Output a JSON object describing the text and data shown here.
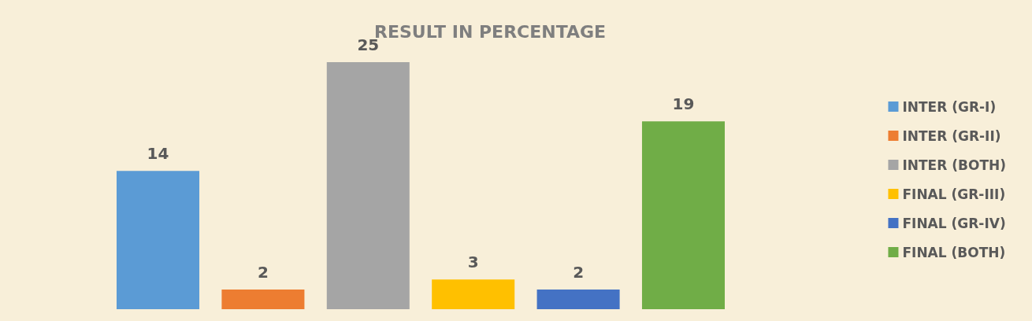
{
  "chart_data": {
    "type": "bar",
    "title": "RESULT IN PERCENTAGE",
    "categories": [
      null
    ],
    "series": [
      {
        "name": "INTER (GR-I)",
        "color": "#5b9bd5",
        "values": [
          14
        ]
      },
      {
        "name": "INTER (GR-II)",
        "color": "#ed7d31",
        "values": [
          2
        ]
      },
      {
        "name": "INTER (BOTH)",
        "color": "#a5a5a5",
        "values": [
          25
        ]
      },
      {
        "name": "FINAL (GR-III)",
        "color": "#ffc000",
        "values": [
          3
        ]
      },
      {
        "name": "FINAL (GR-IV)",
        "color": "#4472c4",
        "values": [
          2
        ]
      },
      {
        "name": "FINAL (BOTH)",
        "color": "#70ad47",
        "values": [
          19
        ]
      }
    ],
    "data_labels": true,
    "legend": "right",
    "grid": false,
    "tick_labels": false
  }
}
